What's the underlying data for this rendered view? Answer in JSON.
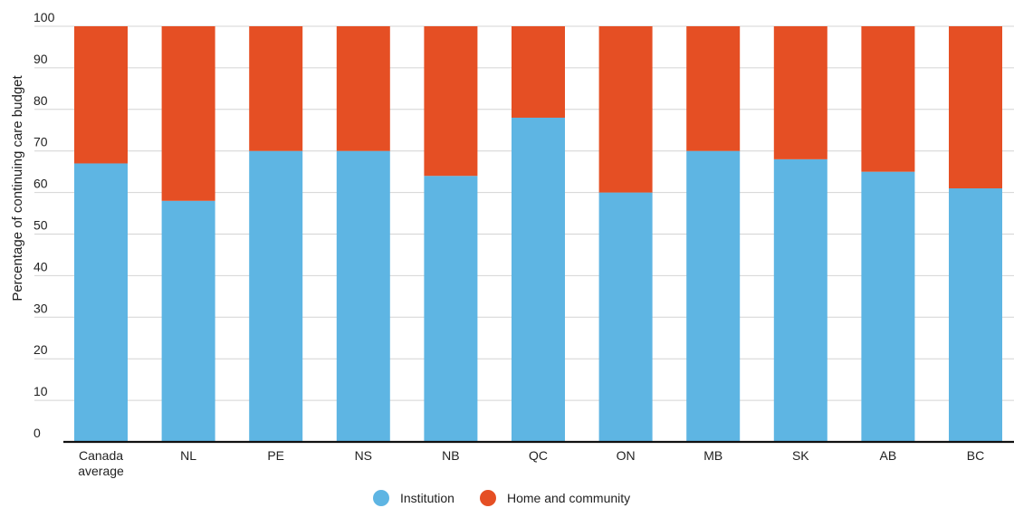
{
  "chart_data": {
    "type": "bar",
    "stacked": true,
    "categories": [
      [
        "Canada",
        "average"
      ],
      [
        "NL"
      ],
      [
        "PE"
      ],
      [
        "NS"
      ],
      [
        "NB"
      ],
      [
        "QC"
      ],
      [
        "ON"
      ],
      [
        "MB"
      ],
      [
        "SK"
      ],
      [
        "AB"
      ],
      [
        "BC"
      ]
    ],
    "series": [
      {
        "name": "Institution",
        "color": "#5eb5e3",
        "values": [
          67,
          58,
          70,
          70,
          64,
          78,
          60,
          70,
          68,
          65,
          61
        ]
      },
      {
        "name": "Home and community",
        "color": "#e54f24",
        "values": [
          33,
          42,
          30,
          30,
          36,
          22,
          40,
          30,
          32,
          35,
          39
        ]
      }
    ],
    "ylabel": "Percentage of continuing care budget",
    "xlabel": "",
    "ylim": [
      0,
      100
    ],
    "yticks": [
      0,
      10,
      20,
      30,
      40,
      50,
      60,
      70,
      80,
      90,
      100
    ],
    "grid": true,
    "legend": "bottom-center"
  }
}
